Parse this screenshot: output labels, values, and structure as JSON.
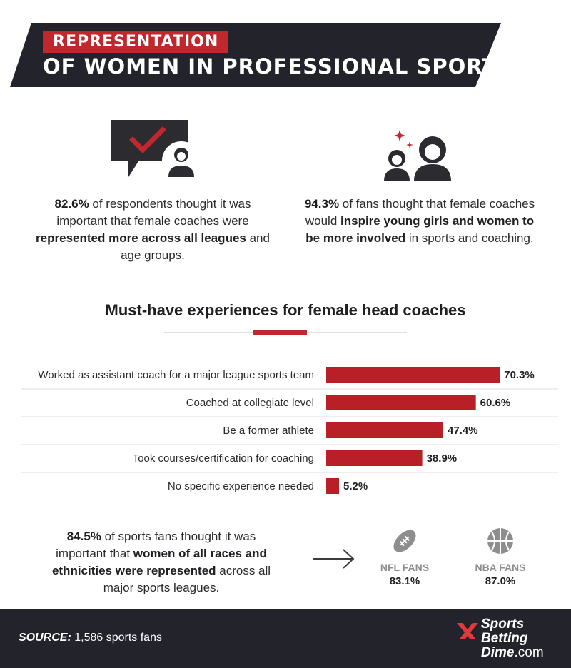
{
  "header": {
    "tag": "REPRESENTATION",
    "title": "OF WOMEN IN PROFESSIONAL SPORTS"
  },
  "stats": [
    {
      "icon": "checkmark-speech-bubble-woman-icon",
      "parts": [
        {
          "text": "82.6%",
          "bold": true
        },
        {
          "text": " of respondents thought it was important that female coaches were ",
          "bold": false
        },
        {
          "text": "represented more across all leagues",
          "bold": true
        },
        {
          "text": " and age groups.",
          "bold": false
        }
      ]
    },
    {
      "icon": "girl-and-woman-icon",
      "parts": [
        {
          "text": "94.3%",
          "bold": true
        },
        {
          "text": " of fans thought that female coaches would ",
          "bold": false
        },
        {
          "text": "inspire young girls and women to be more involved",
          "bold": true
        },
        {
          "text": " in sports and coaching.",
          "bold": false
        }
      ]
    }
  ],
  "chart_data": {
    "type": "bar",
    "orientation": "horizontal",
    "title": "Must-have experiences for female head coaches",
    "categories": [
      "Worked as assistant coach for a major league sports team",
      "Coached at collegiate level",
      "Be a former athlete",
      "Took courses/certification for coaching",
      "No specific experience needed"
    ],
    "values": [
      70.3,
      60.6,
      47.4,
      38.9,
      5.2
    ],
    "value_labels": [
      "70.3%",
      "60.6%",
      "47.4%",
      "38.9%",
      "5.2%"
    ],
    "xlim": [
      0,
      100
    ],
    "bar_color": "#b81f27",
    "grid": false
  },
  "races": {
    "parts": [
      {
        "text": "84.5%",
        "bold": true
      },
      {
        "text": " of sports fans thought it was important that ",
        "bold": false
      },
      {
        "text": "women of all races and ethnicities were represented",
        "bold": true
      },
      {
        "text": " across all major sports leagues.",
        "bold": false
      }
    ],
    "arrow_icon": "arrow-right-icon",
    "fans": [
      {
        "icon": "football-icon",
        "label": "NFL FANS",
        "value": "83.1%"
      },
      {
        "icon": "basketball-icon",
        "label": "NBA FANS",
        "value": "87.0%"
      }
    ]
  },
  "footer": {
    "source_label": "SOURCE:",
    "source_text": " 1,586 sports fans",
    "logo_line1": "Sports",
    "logo_line2": "Betting",
    "logo_line3": "Dime",
    "logo_suffix": ".com"
  },
  "colors": {
    "accent": "#c1272d",
    "dark": "#23232b",
    "icon": "#2b2b30",
    "muted": "#8e8e8e"
  }
}
